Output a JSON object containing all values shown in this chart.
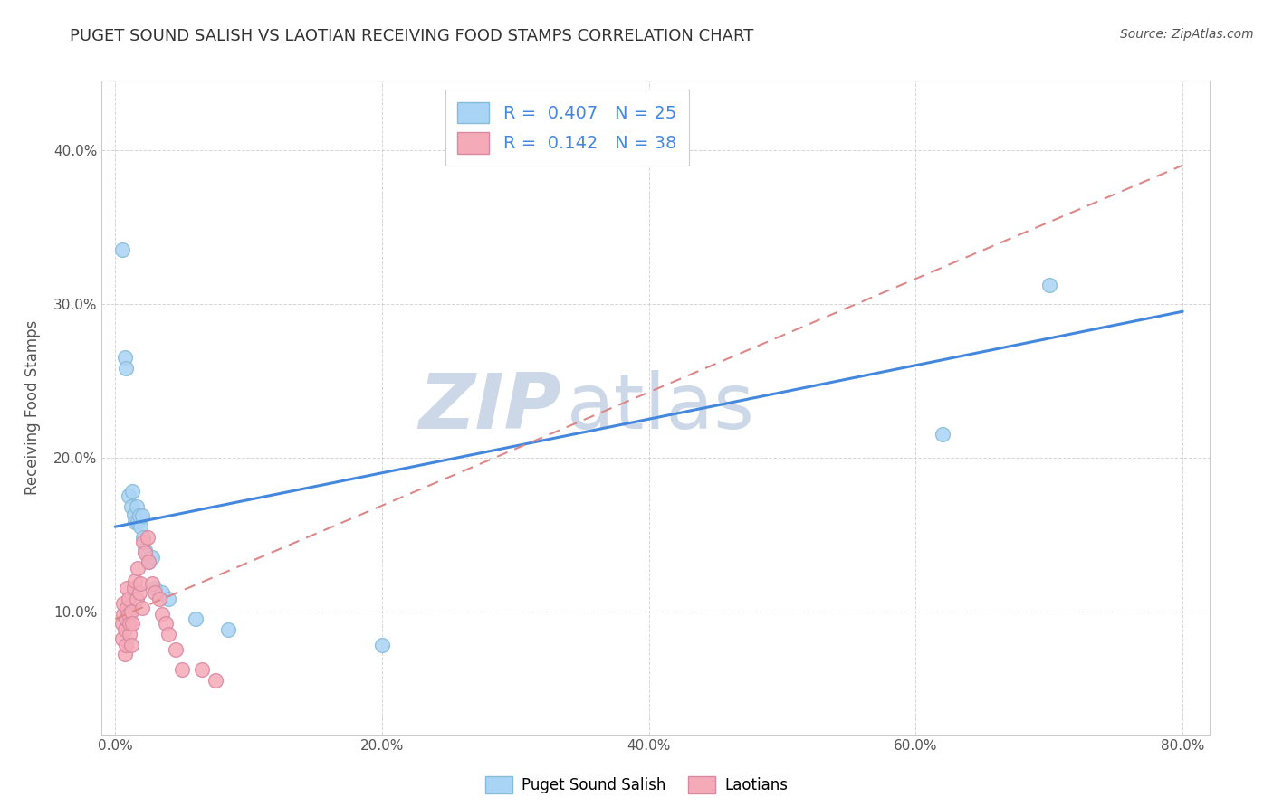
{
  "title": "PUGET SOUND SALISH VS LAOTIAN RECEIVING FOOD STAMPS CORRELATION CHART",
  "source_text": "Source: ZipAtlas.com",
  "ylabel": "Receiving Food Stamps",
  "xlabel_ticks": [
    "0.0%",
    "20.0%",
    "40.0%",
    "60.0%",
    "80.0%"
  ],
  "xlabel_vals": [
    0.0,
    0.2,
    0.4,
    0.6,
    0.8
  ],
  "ylabel_ticks": [
    "10.0%",
    "20.0%",
    "30.0%",
    "40.0%"
  ],
  "ylabel_vals": [
    0.1,
    0.2,
    0.3,
    0.4
  ],
  "xlim": [
    -0.01,
    0.82
  ],
  "ylim": [
    0.02,
    0.445
  ],
  "watermark1": "ZIP",
  "watermark2": "atlas",
  "legend_entries": [
    {
      "label": "R =  0.407   N = 25"
    },
    {
      "label": "R =  0.142   N = 38"
    }
  ],
  "blue_scatter": [
    [
      0.005,
      0.335
    ],
    [
      0.007,
      0.265
    ],
    [
      0.008,
      0.258
    ],
    [
      0.01,
      0.175
    ],
    [
      0.012,
      0.168
    ],
    [
      0.013,
      0.178
    ],
    [
      0.014,
      0.163
    ],
    [
      0.015,
      0.158
    ],
    [
      0.016,
      0.168
    ],
    [
      0.017,
      0.158
    ],
    [
      0.018,
      0.162
    ],
    [
      0.019,
      0.155
    ],
    [
      0.02,
      0.162
    ],
    [
      0.021,
      0.148
    ],
    [
      0.022,
      0.14
    ],
    [
      0.025,
      0.132
    ],
    [
      0.028,
      0.135
    ],
    [
      0.03,
      0.115
    ],
    [
      0.035,
      0.112
    ],
    [
      0.04,
      0.108
    ],
    [
      0.06,
      0.095
    ],
    [
      0.085,
      0.088
    ],
    [
      0.2,
      0.078
    ],
    [
      0.62,
      0.215
    ],
    [
      0.7,
      0.312
    ]
  ],
  "pink_scatter": [
    [
      0.005,
      0.082
    ],
    [
      0.005,
      0.092
    ],
    [
      0.006,
      0.098
    ],
    [
      0.006,
      0.105
    ],
    [
      0.007,
      0.072
    ],
    [
      0.007,
      0.088
    ],
    [
      0.008,
      0.078
    ],
    [
      0.008,
      0.095
    ],
    [
      0.009,
      0.102
    ],
    [
      0.009,
      0.115
    ],
    [
      0.01,
      0.098
    ],
    [
      0.01,
      0.108
    ],
    [
      0.011,
      0.085
    ],
    [
      0.011,
      0.092
    ],
    [
      0.012,
      0.078
    ],
    [
      0.012,
      0.1
    ],
    [
      0.013,
      0.092
    ],
    [
      0.014,
      0.115
    ],
    [
      0.015,
      0.12
    ],
    [
      0.016,
      0.108
    ],
    [
      0.017,
      0.128
    ],
    [
      0.018,
      0.112
    ],
    [
      0.019,
      0.118
    ],
    [
      0.02,
      0.102
    ],
    [
      0.021,
      0.145
    ],
    [
      0.022,
      0.138
    ],
    [
      0.024,
      0.148
    ],
    [
      0.025,
      0.132
    ],
    [
      0.028,
      0.118
    ],
    [
      0.03,
      0.112
    ],
    [
      0.033,
      0.108
    ],
    [
      0.035,
      0.098
    ],
    [
      0.038,
      0.092
    ],
    [
      0.04,
      0.085
    ],
    [
      0.045,
      0.075
    ],
    [
      0.05,
      0.062
    ],
    [
      0.065,
      0.062
    ],
    [
      0.075,
      0.055
    ]
  ],
  "blue_line": {
    "x0": 0.0,
    "y0": 0.155,
    "x1": 0.8,
    "y1": 0.295
  },
  "pink_line": {
    "x0": 0.0,
    "y0": 0.095,
    "x1": 0.8,
    "y1": 0.39
  },
  "blue_line_color": "#4488dd",
  "pink_line_color": "#dd8888",
  "scatter_blue_color": "#aad4f5",
  "scatter_blue_edge": "#88bbd8",
  "scatter_pink_color": "#f5aab8",
  "scatter_pink_edge": "#d888a0",
  "background_color": "#ffffff",
  "grid_color": "#cccccc",
  "title_color": "#333333",
  "source_color": "#555555",
  "axis_label_color": "#555555",
  "tick_color": "#555555",
  "ytick_color": "#5588dd",
  "watermark_color": "#ccd8e8"
}
